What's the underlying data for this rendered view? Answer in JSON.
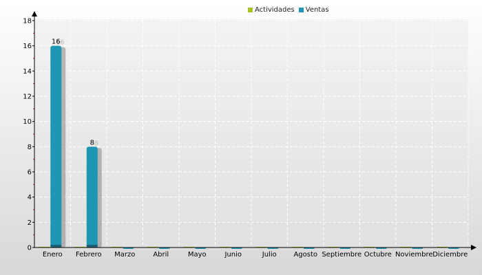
{
  "chart_data": {
    "type": "bar",
    "categories": [
      "Enero",
      "Febrero",
      "Marzo",
      "Abril",
      "Mayo",
      "Junio",
      "Julio",
      "Agosto",
      "Septiembre",
      "Octubre",
      "Noviembre",
      "Diciembre"
    ],
    "series": [
      {
        "name": "Actividades",
        "color": "#a8c021",
        "values": [
          0,
          0,
          0,
          0,
          0,
          0,
          0,
          0,
          0,
          0,
          0,
          0
        ]
      },
      {
        "name": "Ventas",
        "color": "#1e96b4",
        "values": [
          16,
          8,
          0,
          0,
          0,
          0,
          0,
          0,
          0,
          0,
          0,
          0
        ]
      }
    ],
    "data_labels": [
      "16",
      "8"
    ],
    "yticks": [
      "0",
      "2",
      "4",
      "6",
      "8",
      "10",
      "12",
      "14",
      "16",
      "18"
    ],
    "ylim": [
      0,
      18
    ],
    "grid": true,
    "legend_position": "top"
  }
}
